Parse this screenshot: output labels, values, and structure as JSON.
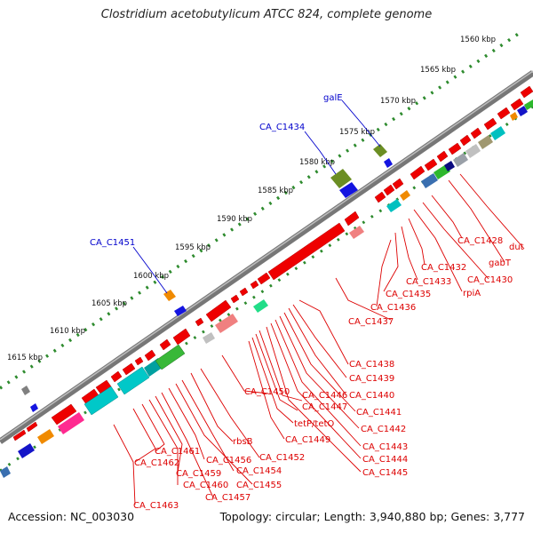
{
  "title": "Clostridium acetobutylicum ATCC 824, complete genome",
  "footer": {
    "accession": "Accession: NC_003030",
    "topology": "Topology: circular; Length: 3,940,880 bp; Genes: 3,777"
  },
  "scale_labels": [
    "1560 kbp",
    "1565 kbp",
    "1570 kbp",
    "1575 kbp",
    "1580 kbp",
    "1585 kbp",
    "1590 kbp",
    "1595 kbp",
    "1600 kbp",
    "1605 kbp",
    "1610 kbp",
    "1615 kbp"
  ],
  "top_gene_labels": [
    "galE",
    "CA_C1434",
    "CA_C1451"
  ],
  "bottom_gene_labels": [
    "dut",
    "gabT",
    "CA_C1428",
    "CA_C1430",
    "rpiA",
    "CA_C1432",
    "CA_C1433",
    "CA_C1435",
    "CA_C1436",
    "CA_C1437",
    "CA_C1438",
    "CA_C1439",
    "CA_C1440",
    "CA_C1441",
    "CA_C1442",
    "CA_C1443",
    "CA_C1444",
    "CA_C1445",
    "CA_C1446",
    "CA_C1447",
    "tetP/tetO",
    "CA_C1449",
    "CA_C1450",
    "CA_C1452",
    "rbsB",
    "CA_C1454",
    "CA_C1455",
    "CA_C1456",
    "CA_C1457",
    "CA_C1459",
    "CA_C1460",
    "CA_C1461",
    "CA_C1462",
    "CA_C1463"
  ],
  "colors": {
    "backbone": "#7a7a7a",
    "scale_dots": "#2e8b2e",
    "forward_gene": "#ee0000",
    "top_label": "#0000cc",
    "bottom_label": "#dd0000"
  }
}
